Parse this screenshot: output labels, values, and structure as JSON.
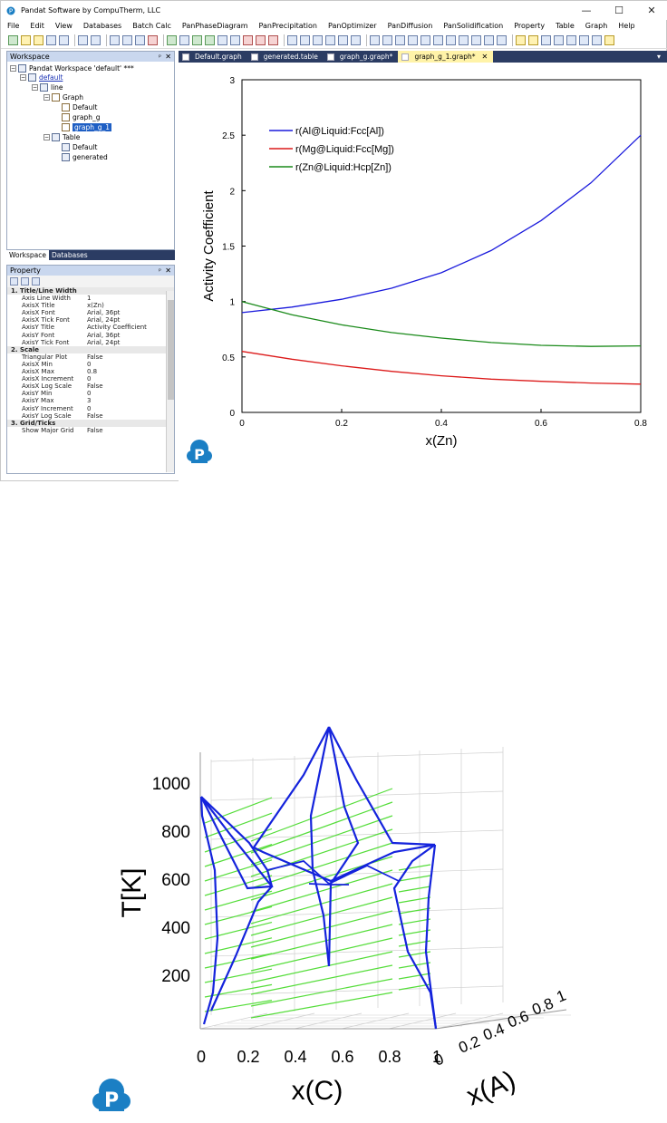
{
  "window": {
    "title": "Pandat Software by CompuTherm, LLC",
    "minimize": "—",
    "maximize": "☐",
    "close": "✕"
  },
  "menu": [
    "File",
    "Edit",
    "View",
    "Databases",
    "Batch Calc",
    "PanPhaseDiagram",
    "PanPrecipitation",
    "PanOptimizer",
    "PanDiffusion",
    "PanSolidification",
    "Property",
    "Table",
    "Graph",
    "Help"
  ],
  "workspace": {
    "header": "Workspace",
    "pin": "ᵖ",
    "close": "✕",
    "tree": {
      "root": "Pandat Workspace 'default' ***",
      "project": "default",
      "line": "line",
      "graph": "Graph",
      "graph_items": [
        "Default",
        "graph_g",
        "graph_g_1"
      ],
      "table": "Table",
      "table_items": [
        "Default",
        "generated"
      ]
    },
    "tabs": [
      "Workspace",
      "Databases"
    ]
  },
  "property": {
    "header": "Property",
    "rows": [
      {
        "cat": true,
        "k": "1. Title/Line Width",
        "v": ""
      },
      {
        "k": "Axis Line Width",
        "v": "1"
      },
      {
        "k": "AxisX Title",
        "v": "x(Zn)"
      },
      {
        "k": "AxisX Font",
        "v": "Arial, 36pt",
        "exp": true
      },
      {
        "k": "AxisX Tick Font",
        "v": "Arial, 24pt",
        "exp": true
      },
      {
        "k": "AxisY Title",
        "v": "Activity Coefficient"
      },
      {
        "k": "AxisY Font",
        "v": "Arial, 36pt",
        "exp": true
      },
      {
        "k": "AxisY Tick Font",
        "v": "Arial, 24pt",
        "exp": true
      },
      {
        "cat": true,
        "k": "2. Scale",
        "v": ""
      },
      {
        "k": "Triangular Plot",
        "v": "False"
      },
      {
        "k": "AxisX Min",
        "v": "0"
      },
      {
        "k": "AxisX Max",
        "v": "0.8"
      },
      {
        "k": "AxisX Increment",
        "v": "0"
      },
      {
        "k": "AxisX Log Scale",
        "v": "False"
      },
      {
        "k": "AxisY Min",
        "v": "0"
      },
      {
        "k": "AxisY Max",
        "v": "3"
      },
      {
        "k": "AxisY Increment",
        "v": "0"
      },
      {
        "k": "AxisY Log Scale",
        "v": "False"
      },
      {
        "cat": true,
        "k": "3. Grid/Ticks",
        "v": ""
      },
      {
        "k": "Show Major Grid",
        "v": "False"
      }
    ]
  },
  "doc_tabs": [
    {
      "label": "Default.graph",
      "active": false
    },
    {
      "label": "generated.table",
      "active": false
    },
    {
      "label": "graph_g.graph*",
      "active": false
    },
    {
      "label": "graph_g_1.graph*",
      "active": true
    }
  ],
  "chart_data": [
    {
      "type": "line",
      "xlabel": "x(Zn)",
      "ylabel": "Activity Coefficient",
      "xlim": [
        0,
        0.8
      ],
      "ylim": [
        0,
        3
      ],
      "xticks": [
        "0",
        "0.2",
        "0.4",
        "0.6",
        "0.8"
      ],
      "yticks": [
        "0",
        "0.5",
        "1",
        "1.5",
        "2",
        "2.5",
        "3"
      ],
      "legend_position": "top-left",
      "grid": false,
      "series": [
        {
          "name": "r(Al@Liquid:Fcc[Al])",
          "color": "#1a1adc",
          "x": [
            0,
            0.1,
            0.2,
            0.3,
            0.4,
            0.5,
            0.6,
            0.7,
            0.8
          ],
          "y": [
            0.9,
            0.95,
            1.02,
            1.12,
            1.26,
            1.46,
            1.73,
            2.07,
            2.5
          ]
        },
        {
          "name": "r(Mg@Liquid:Fcc[Mg])",
          "color": "#dc1a1a",
          "x": [
            0,
            0.1,
            0.2,
            0.3,
            0.4,
            0.5,
            0.6,
            0.7,
            0.8
          ],
          "y": [
            0.55,
            0.48,
            0.42,
            0.37,
            0.33,
            0.3,
            0.28,
            0.265,
            0.255
          ]
        },
        {
          "name": "r(Zn@Liquid:Hcp[Zn])",
          "color": "#1a8a1a",
          "x": [
            0,
            0.1,
            0.2,
            0.3,
            0.4,
            0.5,
            0.6,
            0.7,
            0.8
          ],
          "y": [
            1.0,
            0.88,
            0.79,
            0.72,
            0.67,
            0.63,
            0.605,
            0.595,
            0.6
          ]
        }
      ]
    },
    {
      "type": "line",
      "xlabel": "x(C)",
      "ylabel": "T[K]",
      "zlabel": "x(A)",
      "xticks": [
        "0",
        "0.2",
        "0.4",
        "0.6",
        "0.8",
        "1"
      ],
      "yticks": [
        "200",
        "400",
        "600",
        "800",
        "1000"
      ],
      "zticks": [
        "0",
        "0.2",
        "0.4",
        "0.6",
        "0.8",
        "1"
      ],
      "grid": true
    }
  ]
}
